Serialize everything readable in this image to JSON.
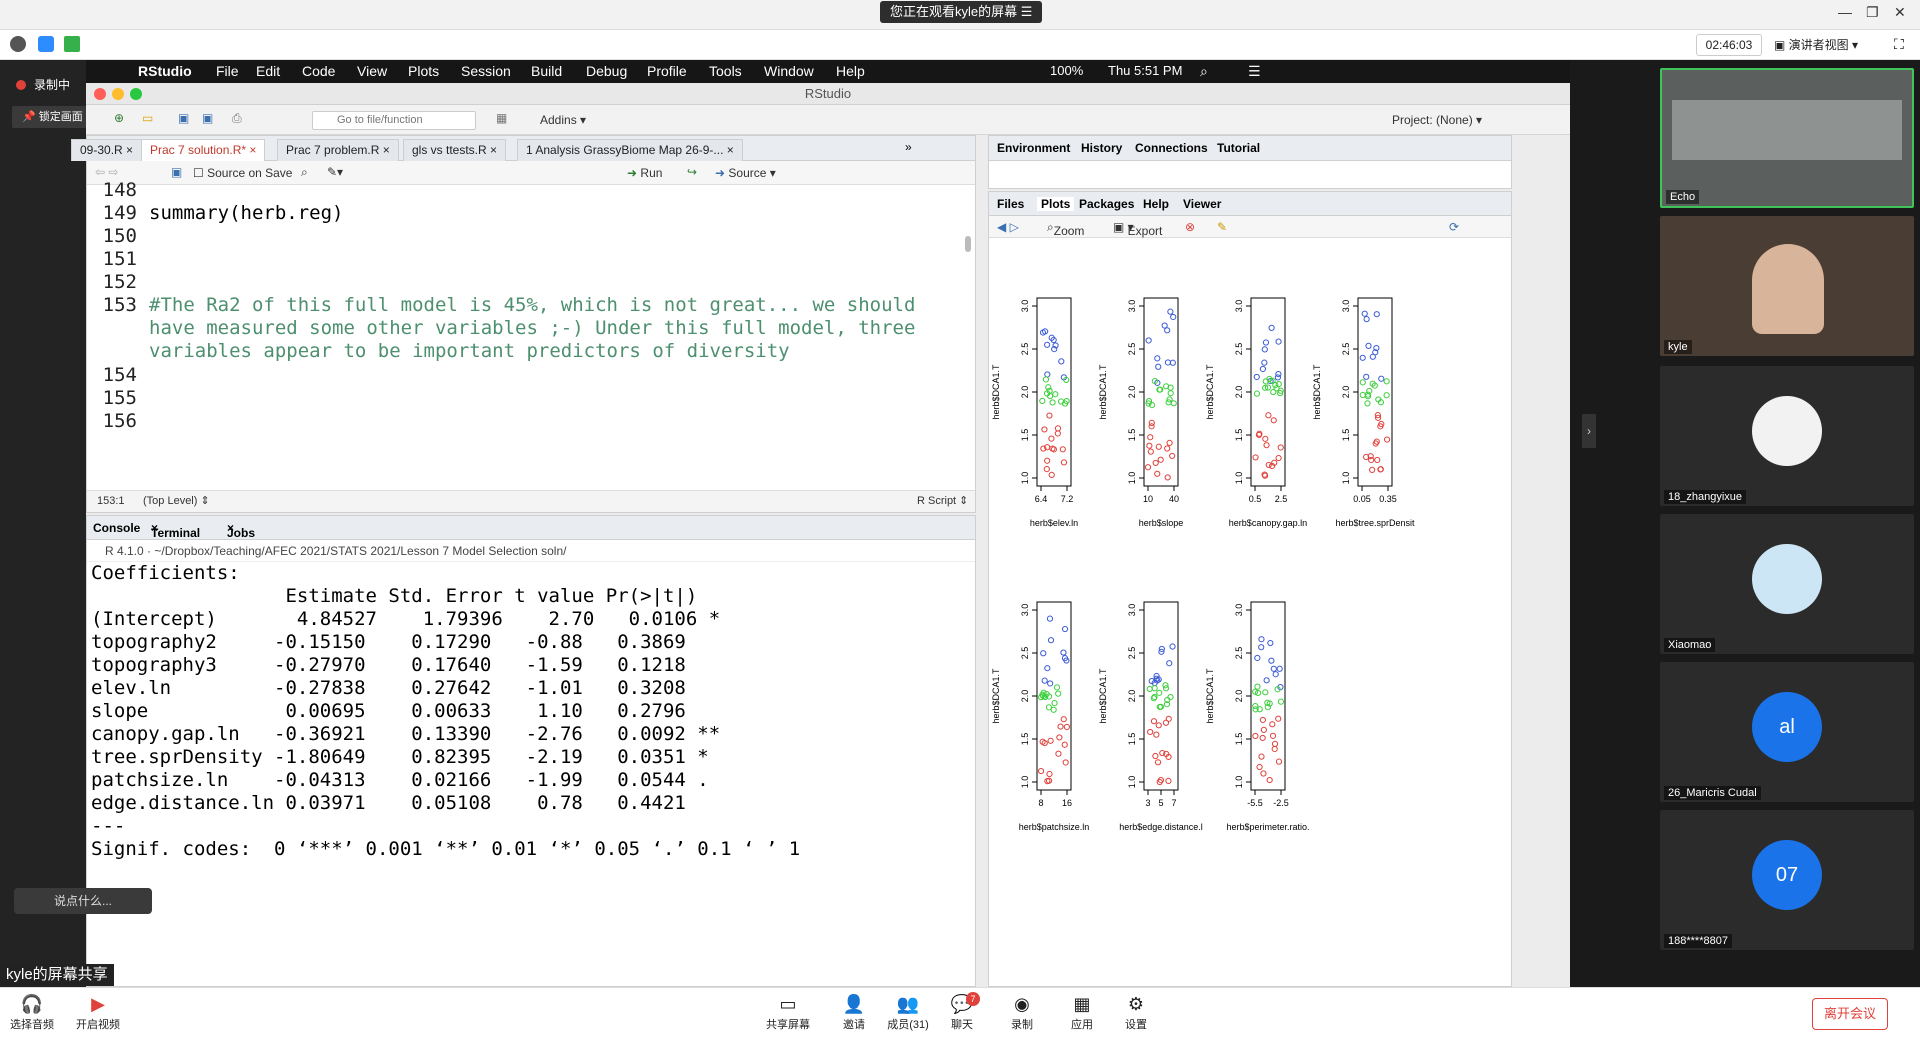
{
  "zoom": {
    "share_banner": "您正在观看kyle的屏幕",
    "timer": "02:46:03",
    "view_label": "演讲者视图",
    "recording": "录制中",
    "lock_screen": "锁定画面",
    "chat_placeholder": "说点什么...",
    "screen_share_label": "kyle的屏幕共享",
    "bottom": {
      "audio": "选择音频",
      "video": "开启视频",
      "share": "共享屏幕",
      "invite": "邀请",
      "members": "成员(31)",
      "chat": "聊天",
      "chat_badge": "7",
      "record": "录制",
      "apps": "应用",
      "settings": "设置",
      "leave": "离开会议"
    },
    "participants": [
      {
        "name": "Echo"
      },
      {
        "name": "kyle"
      },
      {
        "name": "18_zhangyixue"
      },
      {
        "name": "Xiaomao"
      },
      {
        "name": "26_Maricris Cudal",
        "initials": "al"
      },
      {
        "name": "188****8807",
        "initials": "07"
      }
    ]
  },
  "macbar": {
    "app": "RStudio",
    "menus": [
      "File",
      "Edit",
      "Code",
      "View",
      "Plots",
      "Session",
      "Build",
      "Debug",
      "Profile",
      "Tools",
      "Window",
      "Help"
    ],
    "battery": "100%",
    "clock": "Thu 5:51 PM"
  },
  "rstudio": {
    "title": "RStudio",
    "goto_placeholder": "Go to file/function",
    "addins": "Addins",
    "project": "Project: (None)",
    "source_tabs": [
      "09-30.R",
      "Prac 7 solution.R*",
      "Prac 7 problem.R",
      "gls vs ttests.R",
      "1 Analysis GrassyBiome Map 26-9-..."
    ],
    "source_on_save": "Source on Save",
    "run": "Run",
    "source": "Source",
    "line_numbers": [
      "148",
      "149",
      "150",
      "151",
      "152",
      "153",
      "",
      "",
      "154",
      "155",
      "156"
    ],
    "code_lines": [
      "",
      "summary(herb.reg)",
      "",
      "",
      "",
      "#The Ra2 of this full model is 45%, which is not great... we should",
      "have measured some other variables ;-) Under this full model, three",
      "variables appear to be important predictors of diversity",
      "",
      "",
      ""
    ],
    "cursor_pos": "153:1",
    "scope": "(Top Level)",
    "file_type": "R Script",
    "console_tabs": [
      "Console",
      "Terminal",
      "Jobs"
    ],
    "console_path": "R 4.1.0 · ~/Dropbox/Teaching/AFEC 2021/STATS 2021/Lesson 7 Model Selection soln/",
    "console_lines": [
      "Coefficients:",
      "                 Estimate Std. Error t value Pr(>|t|)",
      "(Intercept)       4.84527    1.79396    2.70   0.0106 *",
      "topography2     -0.15150    0.17290   -0.88   0.3869",
      "topography3     -0.27970    0.17640   -1.59   0.1218",
      "elev.ln         -0.27838    0.27642   -1.01   0.3208",
      "slope            0.00695    0.00633    1.10   0.2796",
      "canopy.gap.ln   -0.36921    0.13390   -2.76   0.0092 **",
      "tree.sprDensity -1.80649    0.82395   -2.19   0.0351 *",
      "patchsize.ln    -0.04313    0.02166   -1.99   0.0544 .",
      "edge.distance.ln 0.03971    0.05108    0.78   0.4421",
      "---",
      "Signif. codes:  0 ‘***’ 0.001 ‘**’ 0.01 ‘*’ 0.05 ‘.’ 0.1 ‘ ’ 1"
    ],
    "env_tabs": [
      "Environment",
      "History",
      "Connections",
      "Tutorial"
    ],
    "files_tabs": [
      "Files",
      "Plots",
      "Packages",
      "Help",
      "Viewer"
    ],
    "zoom": "Zoom",
    "export": "Export"
  },
  "chart_data": [
    {
      "type": "scatter",
      "ylabel": "herb$DCA1.T",
      "xlabel": "herb$elev.ln",
      "xticks": [
        "6.4",
        "7.2"
      ],
      "yticks": [
        "1.0",
        "1.5",
        "2.0",
        "2.5",
        "3.0"
      ]
    },
    {
      "type": "scatter",
      "ylabel": "herb$DCA1.T",
      "xlabel": "herb$slope",
      "xticks": [
        "10",
        "40"
      ],
      "yticks": [
        "1.0",
        "1.5",
        "2.0",
        "2.5",
        "3.0"
      ]
    },
    {
      "type": "scatter",
      "ylabel": "herb$DCA1.T",
      "xlabel": "herb$canopy.gap.ln",
      "xticks": [
        "0.5",
        "2.5"
      ],
      "yticks": [
        "1.0",
        "1.5",
        "2.0",
        "2.5",
        "3.0"
      ]
    },
    {
      "type": "scatter",
      "ylabel": "herb$DCA1.T",
      "xlabel": "herb$tree.sprDensit",
      "xticks": [
        "0.05",
        "0.35"
      ],
      "yticks": [
        "1.0",
        "1.5",
        "2.0",
        "2.5",
        "3.0"
      ]
    },
    {
      "type": "scatter",
      "ylabel": "herb$DCA1.T",
      "xlabel": "herb$patchsize.ln",
      "xticks": [
        "8",
        "16"
      ],
      "yticks": [
        "1.0",
        "1.5",
        "2.0",
        "2.5",
        "3.0"
      ]
    },
    {
      "type": "scatter",
      "ylabel": "herb$DCA1.T",
      "xlabel": "herb$edge.distance.l",
      "xticks": [
        "3",
        "5",
        "7"
      ],
      "yticks": [
        "1.0",
        "1.5",
        "2.0",
        "2.5",
        "3.0"
      ]
    },
    {
      "type": "scatter",
      "ylabel": "herb$DCA1.T",
      "xlabel": "herb$perimeter.ratio.",
      "xticks": [
        "-5.5",
        "-2.5"
      ],
      "yticks": [
        "1.0",
        "1.5",
        "2.0",
        "2.5",
        "3.0"
      ]
    }
  ],
  "colors": {
    "high": "#3b5bd6",
    "mid": "#3ccf3c",
    "low": "#e0413b",
    "accent": "#e0413b"
  }
}
